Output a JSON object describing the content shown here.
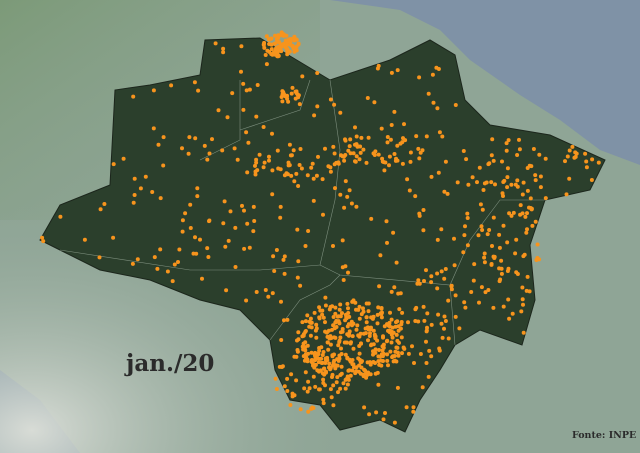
{
  "map": {
    "date_label": "jan./20",
    "source_label": "Fonte: INPE",
    "marker_color": "#f7941d",
    "region_color": "#2b3f2c",
    "ocean_color": "#7f92a6",
    "land_color": "#8fa596"
  }
}
